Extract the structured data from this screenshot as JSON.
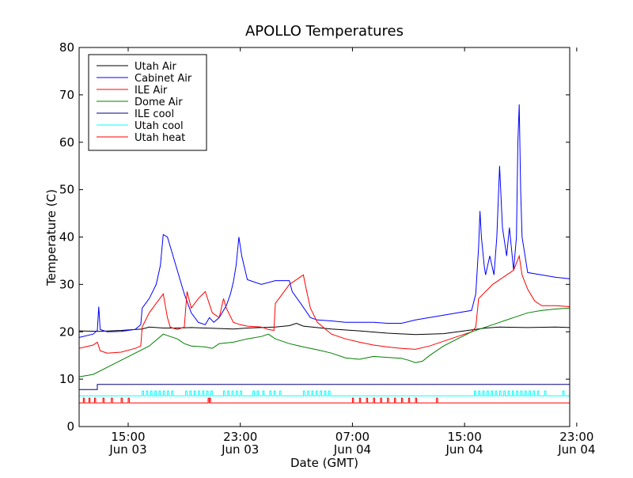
{
  "chart_data": {
    "type": "line",
    "title": "APOLLO Temperatures",
    "xlabel": "Date (GMT)",
    "ylabel": "Temperature (C)",
    "ylim": [
      0,
      80
    ],
    "xlim_hours": [
      0,
      35
    ],
    "x_unit": "hours since 2013-06-03 11:30 GMT",
    "yticks": [
      0,
      10,
      20,
      30,
      40,
      50,
      60,
      70,
      80
    ],
    "xticks": [
      {
        "hours": 3.5,
        "line1": "15:00",
        "line2": "Jun 03"
      },
      {
        "hours": 11.5,
        "line1": "23:00",
        "line2": "Jun 03"
      },
      {
        "hours": 19.5,
        "line1": "07:00",
        "line2": "Jun 04"
      },
      {
        "hours": 27.5,
        "line1": "15:00",
        "line2": "Jun 04"
      },
      {
        "hours": 35.5,
        "line1": "23:00",
        "line2": "Jun 04"
      }
    ],
    "legend_position": "top-left",
    "series": [
      {
        "name": "Utah Air",
        "color": "#000000",
        "points": [
          [
            0,
            20.2
          ],
          [
            1.5,
            20.1
          ],
          [
            3,
            20.3
          ],
          [
            4.5,
            20.6
          ],
          [
            5,
            21
          ],
          [
            6,
            20.8
          ],
          [
            7,
            20.8
          ],
          [
            8,
            20.9
          ],
          [
            9,
            20.8
          ],
          [
            10,
            20.7
          ],
          [
            11,
            20.6
          ],
          [
            12,
            20.8
          ],
          [
            13,
            20.9
          ],
          [
            14,
            21.0
          ],
          [
            15,
            21.3
          ],
          [
            15.5,
            21.8
          ],
          [
            16,
            21.2
          ],
          [
            18,
            20.6
          ],
          [
            20,
            20.2
          ],
          [
            22,
            19.7
          ],
          [
            24,
            19.4
          ],
          [
            26,
            19.6
          ],
          [
            27,
            20.0
          ],
          [
            28,
            20.4
          ],
          [
            29,
            20.8
          ],
          [
            30,
            21.0
          ],
          [
            32,
            20.9
          ],
          [
            34,
            21.0
          ],
          [
            35,
            20.9
          ]
        ]
      },
      {
        "name": "Cabinet Air",
        "color": "#0000ff",
        "points": [
          [
            0,
            18.8
          ],
          [
            1,
            19.5
          ],
          [
            1.3,
            20.3
          ],
          [
            1.4,
            25.3
          ],
          [
            1.5,
            20.5
          ],
          [
            2,
            20
          ],
          [
            3,
            20.1
          ],
          [
            4,
            20.5
          ],
          [
            4.4,
            21.5
          ],
          [
            4.5,
            25
          ],
          [
            5,
            27
          ],
          [
            5.5,
            30
          ],
          [
            5.8,
            34
          ],
          [
            6,
            40.5
          ],
          [
            6.3,
            40
          ],
          [
            6.7,
            36
          ],
          [
            7,
            33
          ],
          [
            7.5,
            28
          ],
          [
            8,
            24
          ],
          [
            8.5,
            22
          ],
          [
            9,
            21.5
          ],
          [
            9.3,
            23
          ],
          [
            9.6,
            22
          ],
          [
            10,
            23
          ],
          [
            10.5,
            25.5
          ],
          [
            10.8,
            28
          ],
          [
            11,
            30.5
          ],
          [
            11.2,
            34
          ],
          [
            11.4,
            40
          ],
          [
            11.6,
            36
          ],
          [
            12,
            31
          ],
          [
            13,
            30
          ],
          [
            14,
            30.8
          ],
          [
            15,
            30.8
          ],
          [
            15.2,
            28.5
          ],
          [
            15.8,
            26
          ],
          [
            16.5,
            23
          ],
          [
            17,
            22.5
          ],
          [
            18,
            22.3
          ],
          [
            19,
            22
          ],
          [
            20,
            22
          ],
          [
            21,
            22
          ],
          [
            22,
            21.8
          ],
          [
            23,
            21.8
          ],
          [
            24,
            22.5
          ],
          [
            25,
            23
          ],
          [
            26,
            23.5
          ],
          [
            27,
            24
          ],
          [
            28,
            24.5
          ],
          [
            28.3,
            28
          ],
          [
            28.5,
            38
          ],
          [
            28.6,
            45.5
          ],
          [
            28.7,
            40
          ],
          [
            28.9,
            34
          ],
          [
            29,
            32
          ],
          [
            29.3,
            36
          ],
          [
            29.6,
            32
          ],
          [
            29.8,
            40
          ],
          [
            30,
            55
          ],
          [
            30.2,
            42
          ],
          [
            30.5,
            36
          ],
          [
            30.7,
            42
          ],
          [
            31,
            33
          ],
          [
            31.2,
            40
          ],
          [
            31.3,
            60
          ],
          [
            31.4,
            68
          ],
          [
            31.5,
            50
          ],
          [
            31.6,
            40
          ],
          [
            32,
            32.5
          ],
          [
            33,
            32
          ],
          [
            34,
            31.5
          ],
          [
            35,
            31.2
          ]
        ]
      },
      {
        "name": "ILE Air",
        "color": "#ff0000",
        "points": [
          [
            0,
            16.5
          ],
          [
            1,
            17.2
          ],
          [
            1.3,
            17.8
          ],
          [
            1.5,
            16
          ],
          [
            2,
            15.5
          ],
          [
            3,
            15.7
          ],
          [
            4,
            16.5
          ],
          [
            4.4,
            17
          ],
          [
            4.5,
            21
          ],
          [
            5,
            24
          ],
          [
            5.5,
            26
          ],
          [
            6,
            28
          ],
          [
            6.3,
            23
          ],
          [
            6.5,
            21
          ],
          [
            7,
            20.5
          ],
          [
            7.5,
            21
          ],
          [
            7.7,
            28.5
          ],
          [
            8,
            25
          ],
          [
            8.5,
            27
          ],
          [
            9,
            28.5
          ],
          [
            9.5,
            24
          ],
          [
            10,
            23
          ],
          [
            10.3,
            27
          ],
          [
            10.5,
            25
          ],
          [
            11,
            22
          ],
          [
            11.5,
            21.5
          ],
          [
            12,
            21.2
          ],
          [
            13,
            21
          ],
          [
            13.5,
            20.5
          ],
          [
            13.9,
            20.3
          ],
          [
            14,
            26
          ],
          [
            14.5,
            28
          ],
          [
            15,
            30
          ],
          [
            15.5,
            31
          ],
          [
            16,
            32
          ],
          [
            16.2,
            29
          ],
          [
            16.5,
            25
          ],
          [
            17,
            22
          ],
          [
            18,
            19.5
          ],
          [
            19,
            18.5
          ],
          [
            20,
            17.8
          ],
          [
            21,
            17.2
          ],
          [
            22,
            16.8
          ],
          [
            23,
            16.5
          ],
          [
            24,
            16.3
          ],
          [
            25,
            17
          ],
          [
            26,
            18
          ],
          [
            27,
            19
          ],
          [
            28,
            20
          ],
          [
            28.3,
            21
          ],
          [
            28.5,
            27
          ],
          [
            29,
            28.5
          ],
          [
            29.5,
            30
          ],
          [
            30,
            31
          ],
          [
            30.5,
            32
          ],
          [
            31,
            33
          ],
          [
            31.4,
            36
          ],
          [
            31.6,
            32
          ],
          [
            32,
            29
          ],
          [
            32.5,
            26.5
          ],
          [
            33,
            25.5
          ],
          [
            34,
            25.5
          ],
          [
            35,
            25.3
          ]
        ]
      },
      {
        "name": "Dome Air",
        "color": "#008000",
        "points": [
          [
            0,
            10.5
          ],
          [
            1,
            11
          ],
          [
            2,
            12.5
          ],
          [
            3,
            14
          ],
          [
            4,
            15.5
          ],
          [
            5,
            17
          ],
          [
            6,
            19.5
          ],
          [
            6.5,
            19
          ],
          [
            7,
            18.5
          ],
          [
            7.5,
            17.5
          ],
          [
            8,
            17
          ],
          [
            9,
            16.8
          ],
          [
            9.5,
            16.5
          ],
          [
            10,
            17.5
          ],
          [
            11,
            17.8
          ],
          [
            12,
            18.5
          ],
          [
            13,
            19
          ],
          [
            13.5,
            19.5
          ],
          [
            14,
            18.5
          ],
          [
            15,
            17.5
          ],
          [
            16,
            16.8
          ],
          [
            17,
            16.2
          ],
          [
            18,
            15.5
          ],
          [
            19,
            14.5
          ],
          [
            20,
            14.2
          ],
          [
            21,
            14.8
          ],
          [
            22,
            14.6
          ],
          [
            23,
            14.4
          ],
          [
            23.5,
            14
          ],
          [
            24,
            13.5
          ],
          [
            24.5,
            13.8
          ],
          [
            25,
            15
          ],
          [
            26,
            17
          ],
          [
            27,
            18.5
          ],
          [
            28,
            20
          ],
          [
            29,
            21
          ],
          [
            30,
            22
          ],
          [
            31,
            23
          ],
          [
            32,
            24
          ],
          [
            33,
            24.5
          ],
          [
            34,
            24.8
          ],
          [
            35,
            25
          ]
        ]
      },
      {
        "name": "ILE cool",
        "color": "#000080",
        "points": [
          [
            0,
            7.8
          ],
          [
            1.3,
            7.8
          ],
          [
            1.3,
            8.9
          ],
          [
            35,
            8.9
          ]
        ]
      },
      {
        "name": "Utah cool",
        "color": "#00ffff",
        "points": [
          [
            0,
            6.5
          ],
          [
            35,
            6.5
          ]
        ],
        "pulses": {
          "base": 6.5,
          "high": 7.5,
          "width": 0.1,
          "times": [
            4.5,
            4.8,
            5.1,
            5.4,
            5.7,
            6.0,
            6.3,
            6.6,
            7.6,
            7.9,
            8.2,
            8.5,
            8.8,
            9.1,
            9.4,
            10.3,
            10.6,
            10.9,
            11.2,
            11.5,
            12.4,
            12.7,
            13.1,
            13.6,
            13.9,
            14.3,
            16,
            16.3,
            16.6,
            16.9,
            17.2,
            17.5,
            17.8,
            28.2,
            28.5,
            28.8,
            29.1,
            29.4,
            29.7,
            30.0,
            30.3,
            30.6,
            30.9,
            31.2,
            31.5,
            31.8,
            32.1,
            32.4,
            32.7,
            33.2,
            34.5
          ]
        }
      },
      {
        "name": "Utah heat",
        "color": "#ff0000",
        "points": [
          [
            0,
            5
          ],
          [
            35,
            5
          ]
        ],
        "pulses": {
          "base": 5,
          "high": 6,
          "width": 0.08,
          "times": [
            0.3,
            0.7,
            1.1,
            1.7,
            2.3,
            3,
            3.5,
            9.2,
            9.3,
            19.5,
            20.0,
            20.5,
            21.0,
            21.5,
            22.0,
            22.5,
            23.0,
            23.5,
            24.0,
            25.5
          ]
        }
      }
    ]
  }
}
